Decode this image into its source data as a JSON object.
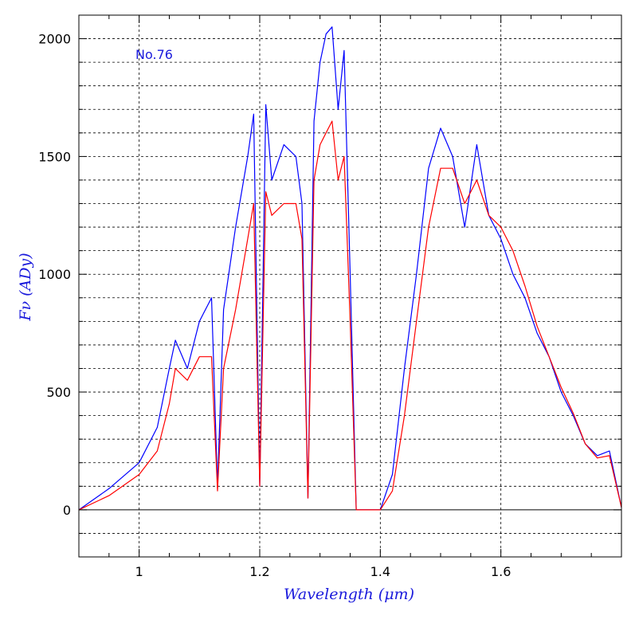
{
  "chart_data": {
    "type": "line",
    "title": "",
    "annotation": "No.76",
    "xlabel": "Wavelength (μm)",
    "ylabel": "Fν (ADy)",
    "xlim": [
      0.9,
      1.8
    ],
    "ylim": [
      -200,
      2100
    ],
    "x_ticks": [
      1,
      1.2,
      1.4,
      1.6
    ],
    "x_tick_labels": [
      "1",
      "1.2",
      "1.4",
      "1.6"
    ],
    "y_ticks": [
      0,
      500,
      1000,
      1500,
      2000
    ],
    "y_tick_labels": [
      "0",
      "500",
      "1000",
      "1500",
      "2000"
    ],
    "x_minor_step": 0.05,
    "y_grid_step": 100,
    "grid": true,
    "zero_line": true,
    "series": [
      {
        "name": "blue spectrum",
        "color": "#0000ff",
        "x": [
          0.9,
          0.95,
          1.0,
          1.03,
          1.05,
          1.06,
          1.08,
          1.1,
          1.12,
          1.13,
          1.14,
          1.16,
          1.18,
          1.19,
          1.2,
          1.21,
          1.22,
          1.24,
          1.26,
          1.27,
          1.28,
          1.29,
          1.3,
          1.31,
          1.32,
          1.33,
          1.34,
          1.35,
          1.36,
          1.4,
          1.42,
          1.44,
          1.46,
          1.48,
          1.5,
          1.52,
          1.54,
          1.56,
          1.58,
          1.6,
          1.62,
          1.64,
          1.66,
          1.68,
          1.7,
          1.72,
          1.74,
          1.76,
          1.78,
          1.8
        ],
        "y": [
          0,
          90,
          200,
          350,
          600,
          720,
          600,
          800,
          900,
          100,
          850,
          1200,
          1500,
          1680,
          100,
          1720,
          1400,
          1550,
          1500,
          1300,
          50,
          1650,
          1900,
          2020,
          2050,
          1700,
          1950,
          1000,
          0,
          0,
          150,
          600,
          1000,
          1450,
          1620,
          1500,
          1200,
          1550,
          1250,
          1150,
          1000,
          900,
          750,
          650,
          500,
          400,
          280,
          230,
          250,
          10
        ]
      },
      {
        "name": "red spectrum",
        "color": "#ff0000",
        "x": [
          0.9,
          0.95,
          1.0,
          1.03,
          1.05,
          1.06,
          1.08,
          1.1,
          1.12,
          1.13,
          1.14,
          1.16,
          1.18,
          1.19,
          1.2,
          1.21,
          1.22,
          1.24,
          1.26,
          1.27,
          1.28,
          1.29,
          1.3,
          1.31,
          1.32,
          1.33,
          1.34,
          1.35,
          1.36,
          1.4,
          1.42,
          1.44,
          1.46,
          1.48,
          1.5,
          1.52,
          1.54,
          1.56,
          1.58,
          1.6,
          1.62,
          1.64,
          1.66,
          1.68,
          1.7,
          1.72,
          1.74,
          1.76,
          1.78,
          1.8
        ],
        "y": [
          0,
          60,
          150,
          250,
          450,
          600,
          550,
          650,
          650,
          80,
          600,
          850,
          1150,
          1300,
          100,
          1350,
          1250,
          1300,
          1300,
          1150,
          50,
          1400,
          1550,
          1600,
          1650,
          1400,
          1500,
          800,
          0,
          0,
          80,
          400,
          800,
          1200,
          1450,
          1450,
          1300,
          1400,
          1250,
          1200,
          1100,
          950,
          780,
          650,
          520,
          410,
          280,
          220,
          230,
          10
        ]
      }
    ]
  }
}
